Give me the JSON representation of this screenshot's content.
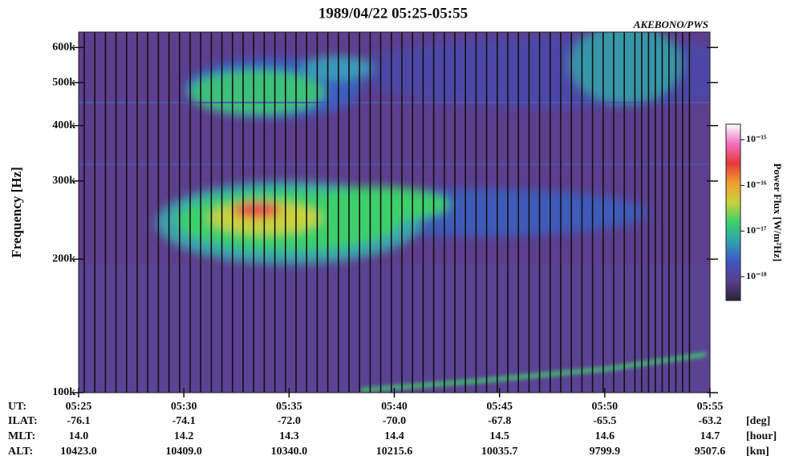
{
  "chart_data": {
    "type": "spectrogram",
    "title": "1989/04/22 05:25-05:55",
    "annotation": "AKEBONO/PWS",
    "y_label": "Frequency [Hz]",
    "ylog": true,
    "ylim": [
      100000,
      650000
    ],
    "yticks": [
      {
        "value": 100000,
        "label": "100k"
      },
      {
        "value": 200000,
        "label": "200k"
      },
      {
        "value": 300000,
        "label": "300k"
      },
      {
        "value": 400000,
        "label": "400k"
      },
      {
        "value": 500000,
        "label": "500k"
      },
      {
        "value": 600000,
        "label": "600k"
      }
    ],
    "colorbar": {
      "label": "Power Flux [W/m²Hz]",
      "log": true,
      "zlim": [
        3e-19,
        2.2e-15
      ],
      "ticks": [
        {
          "value": 1e-15,
          "label": "10⁻¹⁵"
        },
        {
          "value": 1e-16,
          "label": "10⁻¹⁶"
        },
        {
          "value": 1e-17,
          "label": "10⁻¹⁷"
        },
        {
          "value": 1e-18,
          "label": "10⁻¹⁸"
        }
      ],
      "colors": [
        "#2a2438",
        "#5a3f8c",
        "#3f55c4",
        "#2fa0b0",
        "#3ccf6a",
        "#c8d23c",
        "#f0a030",
        "#e83838",
        "#f070c0",
        "#ffffff"
      ]
    },
    "ephemeris": [
      {
        "label": "UT:",
        "values": [
          "05:25",
          "05:30",
          "05:35",
          "05:40",
          "05:45",
          "05:50",
          "05:55"
        ],
        "unit": ""
      },
      {
        "label": "ILAT:",
        "values": [
          "-76.1",
          "-74.1",
          "-72.0",
          "-70.0",
          "-67.8",
          "-65.5",
          "-63.2"
        ],
        "unit": "[deg]"
      },
      {
        "label": "MLT:",
        "values": [
          "14.0",
          "14.2",
          "14.3",
          "14.4",
          "14.5",
          "14.6",
          "14.7"
        ],
        "unit": "[hour]"
      },
      {
        "label": "ALT:",
        "values": [
          "10423.0",
          "10409.0",
          "10340.0",
          "10215.6",
          "10035.7",
          "9799.9",
          "9507.6"
        ],
        "unit": "[km]"
      }
    ]
  }
}
